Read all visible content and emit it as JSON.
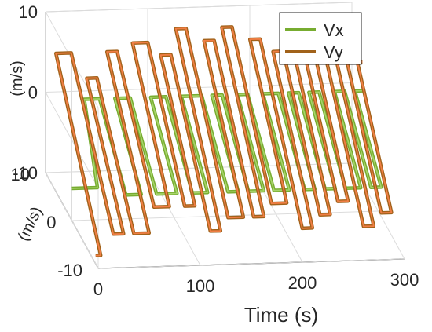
{
  "chart_data": {
    "type": "line",
    "subtype": "3d-step-line",
    "x_label": "Time (s)",
    "y_label": "(m/s)",
    "z_label": "(m/s)",
    "x_ticks": [
      "0",
      "100",
      "200",
      "300"
    ],
    "y_ticks": [
      "-10",
      "0",
      "10"
    ],
    "z_ticks": [
      "-10",
      "0",
      "10"
    ],
    "xlim": [
      0,
      300
    ],
    "ylim": [
      -10,
      10
    ],
    "zlim": [
      -10,
      10
    ],
    "grid": true,
    "legend_position": "top-right",
    "series": [
      {
        "name": "Vx",
        "color": "#77AC30",
        "points": [
          [
            0,
            0,
            -6
          ],
          [
            25,
            0,
            -6
          ],
          [
            25,
            5,
            2
          ],
          [
            40,
            5,
            2
          ],
          [
            40,
            -5,
            -4
          ],
          [
            55,
            -5,
            -4
          ],
          [
            55,
            5,
            2
          ],
          [
            70,
            5,
            2
          ],
          [
            70,
            -5,
            -4
          ],
          [
            90,
            -5,
            -4
          ],
          [
            90,
            5,
            2
          ],
          [
            105,
            5,
            2
          ],
          [
            105,
            -5,
            -4
          ],
          [
            120,
            -5,
            -4
          ],
          [
            120,
            5,
            2
          ],
          [
            140,
            5,
            2
          ],
          [
            140,
            -5,
            -4
          ],
          [
            150,
            -5,
            -4
          ],
          [
            150,
            5,
            2
          ],
          [
            160,
            5,
            2
          ],
          [
            160,
            -5,
            -4
          ],
          [
            175,
            -5,
            -4
          ],
          [
            175,
            5,
            2
          ],
          [
            185,
            5,
            2
          ],
          [
            185,
            -5,
            -4
          ],
          [
            200,
            -5,
            -4
          ],
          [
            200,
            5,
            2
          ],
          [
            215,
            5,
            2
          ],
          [
            215,
            -5,
            -4
          ],
          [
            225,
            -5,
            -4
          ],
          [
            225,
            5,
            2
          ],
          [
            235,
            5,
            2
          ],
          [
            235,
            -5,
            -4
          ],
          [
            245,
            -5,
            -4
          ],
          [
            245,
            5,
            2
          ],
          [
            255,
            5,
            2
          ],
          [
            255,
            -5,
            -4
          ],
          [
            270,
            -5,
            -4
          ],
          [
            270,
            5,
            2
          ],
          [
            280,
            5,
            2
          ],
          [
            280,
            -5,
            -4
          ],
          [
            290,
            -5,
            -4
          ],
          [
            290,
            5,
            2
          ],
          [
            300,
            5,
            2
          ]
        ]
      },
      {
        "name": "Vy",
        "color": "#D95319",
        "points": [
          [
            0,
            -9,
            -9
          ],
          [
            5,
            -9,
            -9
          ],
          [
            5,
            8,
            6
          ],
          [
            20,
            8,
            6
          ],
          [
            20,
            -8,
            -7
          ],
          [
            30,
            -8,
            -7
          ],
          [
            30,
            6,
            4
          ],
          [
            40,
            6,
            4
          ],
          [
            40,
            -8,
            -7
          ],
          [
            55,
            -8,
            -7
          ],
          [
            55,
            8,
            6
          ],
          [
            65,
            8,
            6
          ],
          [
            65,
            -6,
            -5
          ],
          [
            80,
            -6,
            -5
          ],
          [
            80,
            8,
            7
          ],
          [
            95,
            8,
            7
          ],
          [
            95,
            -6,
            -5
          ],
          [
            105,
            -6,
            -5
          ],
          [
            105,
            7,
            6
          ],
          [
            115,
            7,
            6
          ],
          [
            115,
            -8,
            -7
          ],
          [
            125,
            -8,
            -7
          ],
          [
            125,
            9,
            8
          ],
          [
            135,
            9,
            8
          ],
          [
            135,
            -7,
            -6
          ],
          [
            150,
            -7,
            -6
          ],
          [
            150,
            8,
            7
          ],
          [
            160,
            8,
            7
          ],
          [
            160,
            -7,
            -6
          ],
          [
            170,
            -7,
            -6
          ],
          [
            170,
            9,
            8
          ],
          [
            180,
            9,
            8
          ],
          [
            180,
            -6,
            -5
          ],
          [
            195,
            -6,
            -5
          ],
          [
            195,
            8,
            7
          ],
          [
            205,
            8,
            7
          ],
          [
            205,
            -8,
            -7
          ],
          [
            215,
            -8,
            -7
          ],
          [
            215,
            7,
            6
          ],
          [
            225,
            7,
            6
          ],
          [
            225,
            -7,
            -6
          ],
          [
            235,
            -7,
            -6
          ],
          [
            235,
            8,
            7
          ],
          [
            245,
            8,
            7
          ],
          [
            245,
            -6,
            -5
          ],
          [
            255,
            -6,
            -5
          ],
          [
            255,
            7,
            6
          ],
          [
            265,
            7,
            6
          ],
          [
            265,
            -8,
            -7
          ],
          [
            275,
            -8,
            -7
          ],
          [
            275,
            6,
            5
          ],
          [
            285,
            6,
            5
          ],
          [
            285,
            -7,
            -6
          ],
          [
            295,
            -7,
            -6
          ],
          [
            295,
            6,
            5
          ],
          [
            300,
            6,
            5
          ]
        ]
      }
    ]
  }
}
